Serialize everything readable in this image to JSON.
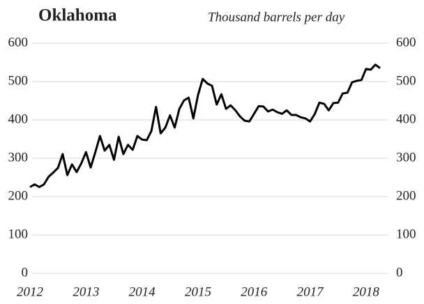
{
  "chart_data": {
    "type": "line",
    "title": "Oklahoma",
    "subtitle": "Thousand barrels per day",
    "x": [
      2012,
      2012.083,
      2012.167,
      2012.25,
      2012.333,
      2012.417,
      2012.5,
      2012.583,
      2012.667,
      2012.75,
      2012.833,
      2012.917,
      2013,
      2013.083,
      2013.167,
      2013.25,
      2013.333,
      2013.417,
      2013.5,
      2013.583,
      2013.667,
      2013.75,
      2013.833,
      2013.917,
      2014,
      2014.083,
      2014.167,
      2014.25,
      2014.333,
      2014.417,
      2014.5,
      2014.583,
      2014.667,
      2014.75,
      2014.833,
      2014.917,
      2015,
      2015.083,
      2015.167,
      2015.25,
      2015.333,
      2015.417,
      2015.5,
      2015.583,
      2015.667,
      2015.75,
      2015.833,
      2015.917,
      2016,
      2016.083,
      2016.167,
      2016.25,
      2016.333,
      2016.417,
      2016.5,
      2016.583,
      2016.667,
      2016.75,
      2016.833,
      2016.917,
      2017,
      2017.083,
      2017.167,
      2017.25,
      2017.333,
      2017.417,
      2017.5,
      2017.583,
      2017.667,
      2017.75,
      2017.833,
      2017.917,
      2018,
      2018.083,
      2018.167,
      2018.25
    ],
    "series": [
      {
        "name": "Oklahoma",
        "color": "#000000",
        "values": [
          225,
          232,
          225,
          232,
          252,
          263,
          275,
          311,
          256,
          284,
          264,
          287,
          316,
          276,
          316,
          358,
          320,
          335,
          296,
          356,
          311,
          335,
          322,
          358,
          349,
          347,
          371,
          434,
          365,
          380,
          412,
          380,
          429,
          451,
          458,
          404,
          465,
          507,
          495,
          489,
          440,
          467,
          429,
          438,
          425,
          409,
          398,
          396,
          416,
          436,
          435,
          422,
          427,
          420,
          416,
          425,
          413,
          413,
          407,
          404,
          396,
          415,
          445,
          442,
          425,
          444,
          445,
          469,
          471,
          498,
          502,
          504,
          533,
          531,
          544,
          535
        ]
      }
    ],
    "xlim": [
      2012,
      2018.25
    ],
    "xticks": [
      2012,
      2013,
      2014,
      2015,
      2016,
      2017,
      2018
    ],
    "ylim": [
      0,
      600
    ],
    "yticks": [
      0,
      100,
      200,
      300,
      400,
      500,
      600
    ],
    "grid": true
  }
}
